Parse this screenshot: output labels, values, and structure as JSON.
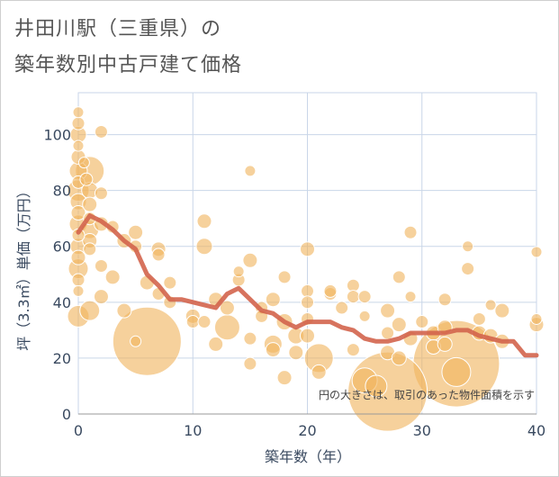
{
  "title": {
    "line1": "井田川駅（三重県）の",
    "line2": "築年数別中古戸建て価格"
  },
  "colors": {
    "bubble": "#f0b560",
    "trend": "#d3644c",
    "grid": "#c9d6e8",
    "axis": "#3a4a60"
  },
  "chart_data": {
    "type": "scatter",
    "title": "井田川駅（三重県）の築年数別中古戸建て価格",
    "xlabel": "築年数（年）",
    "ylabel": "坪（3.3㎡）単価（万円）",
    "xlim": [
      0,
      40
    ],
    "ylim": [
      0,
      115
    ],
    "xticks": [
      0,
      10,
      20,
      30,
      40
    ],
    "yticks": [
      0,
      20,
      40,
      60,
      80,
      100
    ],
    "annotation": "円の大きさは、取引のあった物件面積を示す",
    "bubbles": [
      {
        "x": 0,
        "y": 108,
        "s": 6
      },
      {
        "x": 0,
        "y": 104,
        "s": 7
      },
      {
        "x": 0,
        "y": 100,
        "s": 9
      },
      {
        "x": 0,
        "y": 96,
        "s": 6
      },
      {
        "x": 0,
        "y": 92,
        "s": 8
      },
      {
        "x": 0,
        "y": 87,
        "s": 10
      },
      {
        "x": 0,
        "y": 83,
        "s": 7
      },
      {
        "x": 0,
        "y": 80,
        "s": 12
      },
      {
        "x": 0,
        "y": 76,
        "s": 9
      },
      {
        "x": 0,
        "y": 72,
        "s": 8
      },
      {
        "x": 0,
        "y": 68,
        "s": 10
      },
      {
        "x": 0,
        "y": 64,
        "s": 7
      },
      {
        "x": 0,
        "y": 60,
        "s": 9
      },
      {
        "x": 0,
        "y": 56,
        "s": 8
      },
      {
        "x": 0,
        "y": 52,
        "s": 11
      },
      {
        "x": 0,
        "y": 48,
        "s": 7
      },
      {
        "x": 0,
        "y": 44,
        "s": 6
      },
      {
        "x": 0,
        "y": 35,
        "s": 12
      },
      {
        "x": 0.5,
        "y": 90,
        "s": 6
      },
      {
        "x": 0.7,
        "y": 84,
        "s": 7
      },
      {
        "x": 1,
        "y": 87,
        "s": 16
      },
      {
        "x": 1,
        "y": 80,
        "s": 9
      },
      {
        "x": 1,
        "y": 75,
        "s": 8
      },
      {
        "x": 1,
        "y": 70,
        "s": 7
      },
      {
        "x": 1,
        "y": 66,
        "s": 10
      },
      {
        "x": 1,
        "y": 62,
        "s": 8
      },
      {
        "x": 1,
        "y": 59,
        "s": 7
      },
      {
        "x": 1,
        "y": 37,
        "s": 11
      },
      {
        "x": 2,
        "y": 101,
        "s": 7
      },
      {
        "x": 2,
        "y": 79,
        "s": 7
      },
      {
        "x": 2,
        "y": 68,
        "s": 8
      },
      {
        "x": 2,
        "y": 53,
        "s": 7
      },
      {
        "x": 2,
        "y": 42,
        "s": 8
      },
      {
        "x": 3,
        "y": 67,
        "s": 7
      },
      {
        "x": 3,
        "y": 49,
        "s": 8
      },
      {
        "x": 4,
        "y": 62,
        "s": 8
      },
      {
        "x": 4,
        "y": 37,
        "s": 8
      },
      {
        "x": 5,
        "y": 65,
        "s": 8
      },
      {
        "x": 5,
        "y": 60,
        "s": 7
      },
      {
        "x": 5,
        "y": 26,
        "s": 6
      },
      {
        "x": 6,
        "y": 26,
        "s": 38
      },
      {
        "x": 6,
        "y": 47,
        "s": 8
      },
      {
        "x": 7,
        "y": 59,
        "s": 8
      },
      {
        "x": 7,
        "y": 57,
        "s": 7
      },
      {
        "x": 7,
        "y": 43,
        "s": 7
      },
      {
        "x": 8,
        "y": 47,
        "s": 7
      },
      {
        "x": 8,
        "y": 40,
        "s": 7
      },
      {
        "x": 10,
        "y": 35,
        "s": 8
      },
      {
        "x": 10,
        "y": 33,
        "s": 7
      },
      {
        "x": 11,
        "y": 69,
        "s": 8
      },
      {
        "x": 11,
        "y": 60,
        "s": 9
      },
      {
        "x": 11,
        "y": 33,
        "s": 7
      },
      {
        "x": 12,
        "y": 41,
        "s": 8
      },
      {
        "x": 12,
        "y": 25,
        "s": 8
      },
      {
        "x": 13,
        "y": 38,
        "s": 8
      },
      {
        "x": 13,
        "y": 31,
        "s": 14
      },
      {
        "x": 14,
        "y": 51,
        "s": 6
      },
      {
        "x": 14,
        "y": 48,
        "s": 7
      },
      {
        "x": 15,
        "y": 87,
        "s": 6
      },
      {
        "x": 15,
        "y": 55,
        "s": 8
      },
      {
        "x": 15,
        "y": 27,
        "s": 7
      },
      {
        "x": 15,
        "y": 18,
        "s": 7
      },
      {
        "x": 16,
        "y": 38,
        "s": 7
      },
      {
        "x": 16,
        "y": 35,
        "s": 7
      },
      {
        "x": 17,
        "y": 41,
        "s": 8
      },
      {
        "x": 17,
        "y": 25,
        "s": 10
      },
      {
        "x": 17,
        "y": 23,
        "s": 8
      },
      {
        "x": 18,
        "y": 49,
        "s": 7
      },
      {
        "x": 18,
        "y": 33,
        "s": 9
      },
      {
        "x": 18,
        "y": 13,
        "s": 8
      },
      {
        "x": 19,
        "y": 28,
        "s": 9
      },
      {
        "x": 19,
        "y": 22,
        "s": 8
      },
      {
        "x": 20,
        "y": 59,
        "s": 8
      },
      {
        "x": 20,
        "y": 44,
        "s": 7
      },
      {
        "x": 20,
        "y": 40,
        "s": 7
      },
      {
        "x": 20,
        "y": 34,
        "s": 7
      },
      {
        "x": 20,
        "y": 28,
        "s": 8
      },
      {
        "x": 21,
        "y": 20,
        "s": 16
      },
      {
        "x": 21,
        "y": 15,
        "s": 8
      },
      {
        "x": 22,
        "y": 43,
        "s": 7
      },
      {
        "x": 22,
        "y": 44,
        "s": 7
      },
      {
        "x": 23,
        "y": 38,
        "s": 7
      },
      {
        "x": 24,
        "y": 46,
        "s": 7
      },
      {
        "x": 24,
        "y": 42,
        "s": 7
      },
      {
        "x": 24,
        "y": 23,
        "s": 7
      },
      {
        "x": 25,
        "y": 42,
        "s": 7
      },
      {
        "x": 25,
        "y": 35,
        "s": 6
      },
      {
        "x": 25,
        "y": 12,
        "s": 14
      },
      {
        "x": 26,
        "y": 10,
        "s": 12
      },
      {
        "x": 27,
        "y": 37,
        "s": 8
      },
      {
        "x": 27,
        "y": 29,
        "s": 7
      },
      {
        "x": 27,
        "y": 22,
        "s": 8
      },
      {
        "x": 27,
        "y": 8,
        "s": 44
      },
      {
        "x": 28,
        "y": 49,
        "s": 7
      },
      {
        "x": 28,
        "y": 32,
        "s": 8
      },
      {
        "x": 28,
        "y": 20,
        "s": 8
      },
      {
        "x": 29,
        "y": 65,
        "s": 7
      },
      {
        "x": 29,
        "y": 42,
        "s": 6
      },
      {
        "x": 29,
        "y": 27,
        "s": 8
      },
      {
        "x": 30,
        "y": 33,
        "s": 7
      },
      {
        "x": 31,
        "y": 29,
        "s": 8
      },
      {
        "x": 31,
        "y": 24,
        "s": 8
      },
      {
        "x": 32,
        "y": 41,
        "s": 7
      },
      {
        "x": 32,
        "y": 31,
        "s": 8
      },
      {
        "x": 32,
        "y": 25,
        "s": 8
      },
      {
        "x": 33,
        "y": 18,
        "s": 48
      },
      {
        "x": 33,
        "y": 15,
        "s": 16
      },
      {
        "x": 34,
        "y": 60,
        "s": 6
      },
      {
        "x": 34,
        "y": 52,
        "s": 7
      },
      {
        "x": 35,
        "y": 34,
        "s": 7
      },
      {
        "x": 35,
        "y": 29,
        "s": 8
      },
      {
        "x": 36,
        "y": 39,
        "s": 6
      },
      {
        "x": 36,
        "y": 28,
        "s": 8
      },
      {
        "x": 37,
        "y": 37,
        "s": 8
      },
      {
        "x": 37,
        "y": 26,
        "s": 8
      },
      {
        "x": 40,
        "y": 58,
        "s": 6
      },
      {
        "x": 40,
        "y": 34,
        "s": 6
      },
      {
        "x": 40,
        "y": 32,
        "s": 8
      }
    ],
    "trend": {
      "x": [
        0,
        1,
        2,
        3,
        4,
        5,
        6,
        7,
        8,
        9,
        10,
        11,
        12,
        13,
        14,
        15,
        16,
        17,
        18,
        19,
        20,
        21,
        22,
        23,
        24,
        25,
        26,
        27,
        28,
        29,
        30,
        31,
        32,
        33,
        34,
        35,
        36,
        37,
        38,
        39,
        40
      ],
      "y": [
        65,
        71,
        69,
        66,
        62,
        59,
        50,
        46,
        41,
        41,
        40,
        39,
        38,
        43,
        45,
        41,
        37,
        36,
        33,
        31,
        33,
        33,
        33,
        31,
        30,
        27,
        26,
        26,
        27,
        29,
        29,
        29,
        29,
        30,
        30,
        28,
        27,
        26,
        26,
        21,
        21
      ]
    }
  }
}
